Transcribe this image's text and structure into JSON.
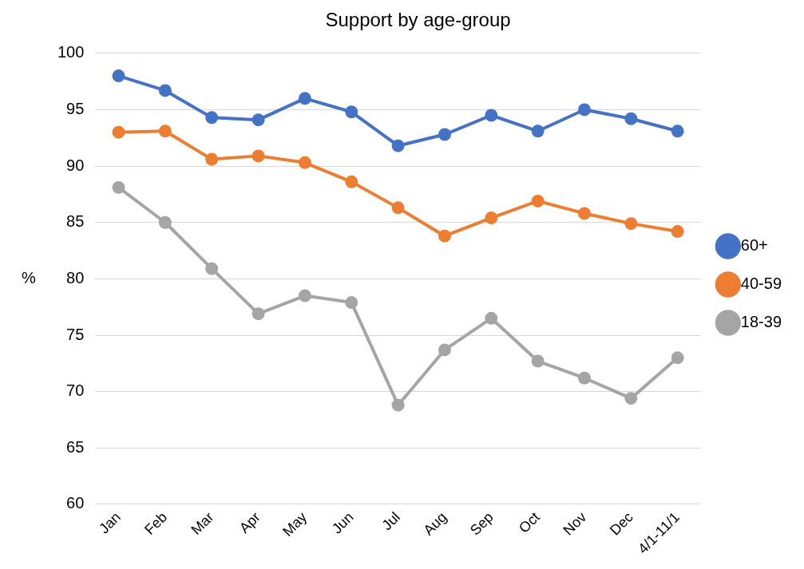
{
  "chart_data": {
    "type": "line",
    "title": "Support by age-group",
    "ylabel": "%",
    "categories": [
      "Jan",
      "Feb",
      "Mar",
      "Apr",
      "May",
      "Jun",
      "Jul",
      "Aug",
      "Sep",
      "Oct",
      "Nov",
      "Dec",
      "4/1-11/1"
    ],
    "series": [
      {
        "name": "60+",
        "color": "#4472c4",
        "values": [
          98.0,
          96.7,
          94.3,
          94.1,
          96.0,
          94.8,
          91.8,
          92.8,
          94.5,
          93.1,
          95.0,
          94.2,
          93.1
        ]
      },
      {
        "name": "40-59",
        "color": "#ed7d31",
        "values": [
          93.0,
          93.1,
          90.6,
          90.9,
          90.3,
          88.6,
          86.3,
          83.8,
          85.4,
          86.9,
          85.8,
          84.9,
          84.2
        ]
      },
      {
        "name": "18-39",
        "color": "#a5a5a5",
        "values": [
          88.1,
          85.0,
          80.9,
          76.9,
          78.5,
          77.9,
          68.8,
          73.7,
          76.5,
          72.7,
          71.2,
          69.4,
          73.0
        ]
      }
    ],
    "ylim": [
      60,
      100
    ],
    "yticks": [
      60,
      65,
      70,
      75,
      80,
      85,
      90,
      95,
      100
    ],
    "grid": "y",
    "legend": "right",
    "marker": "circle",
    "line_style": "solid"
  }
}
